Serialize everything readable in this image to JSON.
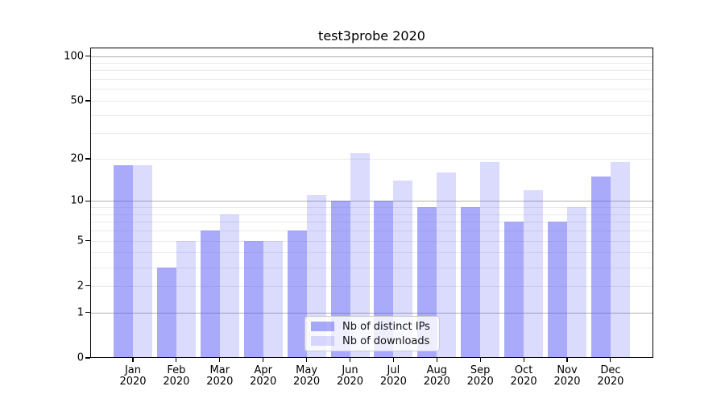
{
  "figure": {
    "background": "#ffffff"
  },
  "chart_data": {
    "type": "bar",
    "title": "test3probe 2020",
    "categories": [
      {
        "month": "Jan",
        "year": "2020"
      },
      {
        "month": "Feb",
        "year": "2020"
      },
      {
        "month": "Mar",
        "year": "2020"
      },
      {
        "month": "Apr",
        "year": "2020"
      },
      {
        "month": "May",
        "year": "2020"
      },
      {
        "month": "Jun",
        "year": "2020"
      },
      {
        "month": "Jul",
        "year": "2020"
      },
      {
        "month": "Aug",
        "year": "2020"
      },
      {
        "month": "Sep",
        "year": "2020"
      },
      {
        "month": "Oct",
        "year": "2020"
      },
      {
        "month": "Nov",
        "year": "2020"
      },
      {
        "month": "Dec",
        "year": "2020"
      }
    ],
    "series": [
      {
        "name": "Nb of distinct IPs",
        "color": "rgba(85,85,245,0.5)",
        "values": [
          18,
          3,
          6,
          5,
          6,
          10,
          10,
          9,
          9,
          7,
          7,
          15
        ]
      },
      {
        "name": "Nb of downloads",
        "color": "rgba(85,85,245,0.21)",
        "values": [
          18,
          5,
          8,
          5,
          11,
          22,
          14,
          16,
          19,
          12,
          9,
          19
        ]
      }
    ],
    "yscale": "log1p",
    "ylim": [
      0,
      114
    ],
    "y_tick_values": [
      100,
      50,
      20,
      10,
      5,
      2,
      1,
      0
    ],
    "y_major_gridlines": [
      100,
      10,
      1
    ],
    "y_minor_gridlines": [
      90,
      80,
      70,
      60,
      50,
      40,
      30,
      20,
      9,
      8,
      7,
      6,
      5,
      4,
      3,
      2
    ],
    "grid": true,
    "legend_position": "lower center",
    "colors": {
      "axis": "#000000",
      "text": "#000000",
      "grid_major": "#b0b0b0",
      "grid_minor": "#eaeaea",
      "legend_bg": "rgba(255,255,255,0.8)",
      "legend_border": "#cccccc"
    }
  }
}
